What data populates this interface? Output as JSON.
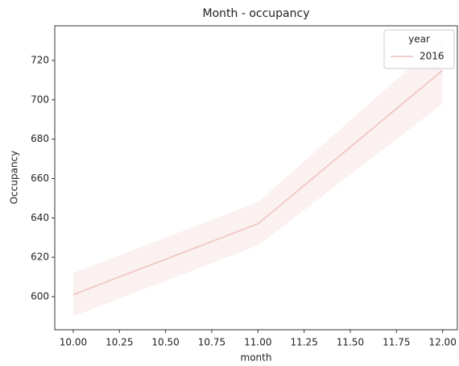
{
  "chart_data": {
    "type": "line",
    "title": "Month - occupancy",
    "xlabel": "month",
    "ylabel": "Occupancy",
    "x": [
      10,
      11,
      12
    ],
    "series": [
      {
        "name": "2016",
        "color": "#f0c8c4",
        "values": [
          601,
          637,
          715
        ],
        "ci_lower": [
          590,
          626,
          698
        ],
        "ci_upper": [
          612,
          648,
          731
        ]
      }
    ],
    "legend_title": "year",
    "legend": "upper right",
    "xlim": [
      9.9,
      12.08
    ],
    "ylim": [
      583.2,
      737.6
    ],
    "xticks": [
      {
        "value": 10,
        "label": "10.00"
      },
      {
        "value": 10.25,
        "label": "10.25"
      },
      {
        "value": 10.5,
        "label": "10.50"
      },
      {
        "value": 10.75,
        "label": "10.75"
      },
      {
        "value": 11,
        "label": "11.00"
      },
      {
        "value": 11.25,
        "label": "11.25"
      },
      {
        "value": 11.5,
        "label": "11.50"
      },
      {
        "value": 11.75,
        "label": "11.75"
      },
      {
        "value": 12,
        "label": "12.00"
      }
    ],
    "yticks": [
      600,
      620,
      640,
      660,
      680,
      700,
      720
    ],
    "grid": false
  }
}
